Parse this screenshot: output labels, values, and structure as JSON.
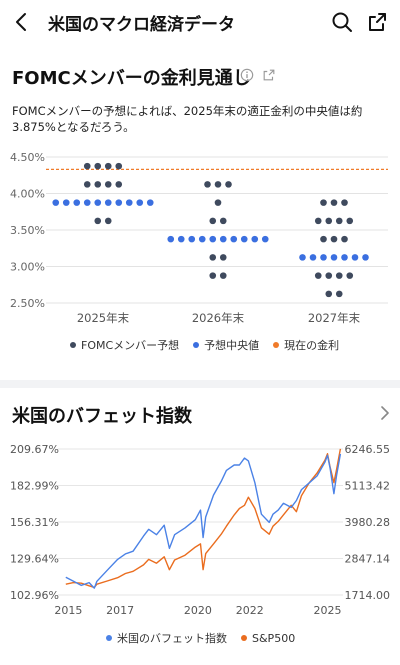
{
  "header": {
    "title": "米国のマクロ経済データ"
  },
  "fomc": {
    "title": "FOMCメンバーの金利見通し",
    "description": "FOMCメンバーの予想によれば、2025年末の適正金利の中央値は約3.875%となるだろう。",
    "legend": {
      "member": "FOMCメンバー予想",
      "median": "予想中央値",
      "current": "現在の金利"
    },
    "colors": {
      "member": "#3f4a5e",
      "median": "#3b6fe0",
      "current": "#f07b2a"
    }
  },
  "buffett": {
    "title": "米国のバフェット指数",
    "legend": {
      "index": "米国のバフェット指数",
      "sp": "S&P500"
    },
    "colors": {
      "index": "#4b82e6",
      "sp": "#ea6d1f"
    }
  },
  "chart_data": [
    {
      "type": "scatter",
      "categories": [
        "2025年末",
        "2026年末",
        "2027年末"
      ],
      "ylim": [
        2.5,
        4.5
      ],
      "yticks": [
        "4.50%",
        "4.00%",
        "3.50%",
        "3.00%",
        "2.50%"
      ],
      "current_rate": 4.33,
      "median": [
        3.875,
        3.375,
        3.125
      ],
      "members": [
        [
          [
            4.375,
            4
          ],
          [
            4.125,
            4
          ],
          [
            3.875,
            10
          ],
          [
            3.625,
            2
          ]
        ],
        [
          [
            4.125,
            3
          ],
          [
            3.875,
            1
          ],
          [
            3.625,
            2
          ],
          [
            3.375,
            10
          ],
          [
            3.125,
            2
          ],
          [
            2.875,
            2
          ]
        ],
        [
          [
            3.875,
            3
          ],
          [
            3.625,
            4
          ],
          [
            3.375,
            3
          ],
          [
            3.125,
            7
          ],
          [
            2.875,
            4
          ],
          [
            2.625,
            2
          ]
        ]
      ]
    },
    {
      "type": "line",
      "xticks": [
        "2015",
        "2017",
        "2020",
        "2022",
        "2025"
      ],
      "left_axis": [
        "209.67%",
        "182.99%",
        "156.31%",
        "129.64%",
        "102.96%"
      ],
      "right_axis": [
        "6246.55",
        "5113.42",
        "3980.28",
        "2847.14",
        "1714.00"
      ],
      "left_range": [
        102.96,
        209.67
      ],
      "right_range": [
        1714.0,
        6246.55
      ],
      "series": [
        {
          "name": "米国のバフェット指数",
          "axis": "left",
          "x": [
            2014.9,
            2015.2,
            2015.5,
            2015.8,
            2016.0,
            2016.1,
            2016.5,
            2016.9,
            2017.2,
            2017.5,
            2017.9,
            2018.1,
            2018.4,
            2018.7,
            2018.9,
            2019.1,
            2019.5,
            2019.9,
            2020.1,
            2020.2,
            2020.3,
            2020.6,
            2020.9,
            2021.1,
            2021.4,
            2021.6,
            2021.8,
            2021.95,
            2022.2,
            2022.45,
            2022.75,
            2022.9,
            2023.1,
            2023.3,
            2023.6,
            2023.8,
            2024.0,
            2024.3,
            2024.6,
            2024.9,
            2025.0,
            2025.1,
            2025.25,
            2025.35,
            2025.5
          ],
          "y": [
            116,
            113,
            110,
            112,
            108,
            113,
            121,
            129,
            133,
            135,
            146,
            151,
            147,
            154,
            137,
            147,
            152,
            158,
            165,
            145,
            160,
            176,
            186,
            194,
            198,
            198,
            203,
            201,
            185,
            162,
            156,
            162,
            165,
            170,
            167,
            172,
            180,
            185,
            190,
            200,
            205,
            196,
            177,
            190,
            206
          ]
        },
        {
          "name": "S&P500",
          "axis": "right",
          "x": [
            2014.9,
            2015.2,
            2015.5,
            2015.8,
            2016.0,
            2016.1,
            2016.5,
            2016.9,
            2017.2,
            2017.5,
            2017.9,
            2018.1,
            2018.4,
            2018.7,
            2018.9,
            2019.1,
            2019.5,
            2019.9,
            2020.1,
            2020.2,
            2020.3,
            2020.6,
            2020.9,
            2021.1,
            2021.4,
            2021.6,
            2021.8,
            2021.95,
            2022.2,
            2022.45,
            2022.75,
            2022.9,
            2023.1,
            2023.3,
            2023.6,
            2023.8,
            2024.0,
            2024.3,
            2024.6,
            2024.9,
            2025.0,
            2025.1,
            2025.25,
            2025.35,
            2025.5
          ],
          "y": [
            2050,
            2100,
            2080,
            2000,
            1950,
            2050,
            2150,
            2250,
            2380,
            2450,
            2650,
            2820,
            2700,
            2900,
            2500,
            2800,
            2950,
            3200,
            3300,
            2500,
            3000,
            3300,
            3600,
            3850,
            4200,
            4400,
            4500,
            4750,
            4400,
            3800,
            3600,
            3850,
            4000,
            4200,
            4500,
            4300,
            4800,
            5200,
            5500,
            5900,
            6100,
            5700,
            5200,
            5600,
            6250
          ]
        }
      ]
    }
  ]
}
